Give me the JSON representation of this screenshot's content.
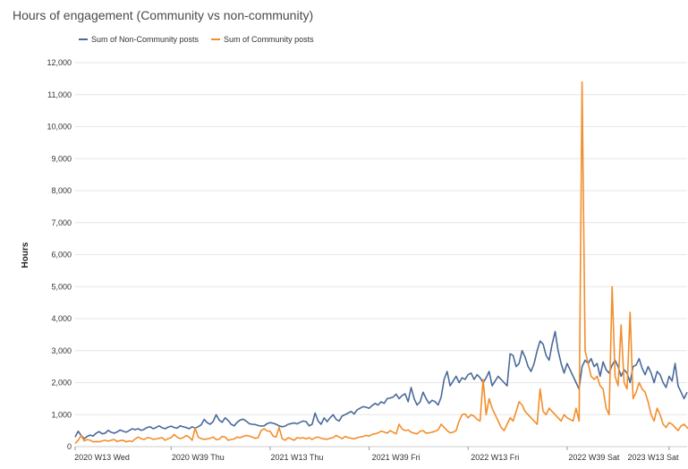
{
  "chart_data": {
    "type": "line",
    "title": "Hours of engagement (Community vs non-community)",
    "xlabel": "",
    "ylabel": "Hours",
    "ylim": [
      0,
      12000
    ],
    "yticks": [
      "0",
      "1,000",
      "2,000",
      "3,000",
      "4,000",
      "5,000",
      "6,000",
      "7,000",
      "8,000",
      "9,000",
      "10,000",
      "11,000",
      "12,000"
    ],
    "xticks": [
      "2020 W13 Wed",
      "2020 W39 Thu",
      "2021 W13 Thu",
      "2021 W39 Fri",
      "2022 W13 Fri",
      "2022 W39 Sat",
      "2023 W13 Sat"
    ],
    "colors": {
      "non_community": "#4a6a9b",
      "community": "#f28e2b"
    },
    "series": [
      {
        "name": "Sum of Non-Community posts",
        "values": [
          300,
          480,
          350,
          250,
          320,
          360,
          330,
          420,
          470,
          400,
          420,
          510,
          450,
          420,
          460,
          520,
          480,
          450,
          500,
          560,
          530,
          560,
          510,
          540,
          600,
          620,
          560,
          600,
          650,
          590,
          560,
          610,
          640,
          600,
          580,
          650,
          620,
          600,
          560,
          620,
          580,
          620,
          680,
          850,
          750,
          700,
          780,
          1000,
          830,
          760,
          900,
          820,
          700,
          650,
          760,
          830,
          860,
          800,
          720,
          700,
          690,
          660,
          640,
          650,
          720,
          750,
          730,
          700,
          650,
          620,
          640,
          700,
          720,
          740,
          710,
          760,
          800,
          780,
          650,
          700,
          1050,
          800,
          700,
          900,
          780,
          900,
          1000,
          850,
          800,
          960,
          1000,
          1050,
          1100,
          1020,
          1150,
          1200,
          1250,
          1230,
          1200,
          1280,
          1350,
          1300,
          1400,
          1350,
          1500,
          1520,
          1550,
          1640,
          1500,
          1600,
          1650,
          1400,
          1850,
          1500,
          1300,
          1400,
          1700,
          1500,
          1350,
          1450,
          1400,
          1300,
          1550,
          2100,
          2350,
          1900,
          2050,
          2200,
          2000,
          2150,
          2100,
          2250,
          2300,
          2100,
          2250,
          2150,
          2000,
          2150,
          2350,
          1900,
          2050,
          2200,
          2100,
          2000,
          1900,
          2900,
          2850,
          2500,
          2600,
          3000,
          2800,
          2500,
          2350,
          2600,
          3000,
          3300,
          3200,
          2850,
          2700,
          3200,
          3600,
          3000,
          2600,
          2300,
          2600,
          2400,
          2200,
          2000,
          1800,
          2500,
          2700,
          2600,
          2750,
          2500,
          2600,
          2200,
          2650,
          2400,
          2300,
          2550,
          2700,
          2500,
          2200,
          2400,
          2300,
          2000,
          2500,
          2550,
          2750,
          2450,
          2250,
          2500,
          2300,
          2000,
          2350,
          2250,
          2000,
          1850,
          2200,
          2050,
          2600,
          1900,
          1700,
          1500,
          1700
        ]
      },
      {
        "name": "Sum of Community posts",
        "values": [
          100,
          200,
          350,
          180,
          220,
          200,
          150,
          160,
          150,
          180,
          200,
          170,
          200,
          220,
          160,
          190,
          200,
          150,
          180,
          160,
          240,
          300,
          250,
          220,
          280,
          270,
          230,
          240,
          260,
          280,
          200,
          250,
          280,
          380,
          300,
          250,
          280,
          350,
          300,
          200,
          580,
          300,
          250,
          230,
          240,
          260,
          300,
          220,
          230,
          320,
          300,
          200,
          220,
          240,
          300,
          280,
          320,
          350,
          330,
          300,
          260,
          280,
          500,
          560,
          490,
          480,
          330,
          300,
          600,
          250,
          200,
          280,
          240,
          200,
          280,
          260,
          280,
          240,
          280,
          220,
          280,
          300,
          260,
          240,
          230,
          260,
          280,
          350,
          300,
          250,
          320,
          280,
          260,
          240,
          280,
          300,
          320,
          350,
          330,
          380,
          400,
          430,
          480,
          460,
          420,
          500,
          450,
          400,
          700,
          550,
          500,
          520,
          450,
          420,
          400,
          480,
          500,
          420,
          430,
          450,
          480,
          520,
          700,
          600,
          500,
          430,
          450,
          500,
          800,
          1000,
          1020,
          900,
          1000,
          950,
          850,
          800,
          2100,
          1000,
          1500,
          1200,
          1000,
          800,
          600,
          500,
          700,
          900,
          800,
          1100,
          1400,
          1300,
          1100,
          1000,
          900,
          800,
          700,
          1800,
          1100,
          1000,
          1200,
          1100,
          1000,
          900,
          800,
          1000,
          900,
          850,
          800,
          1200,
          800,
          11400,
          3000,
          2600,
          2200,
          2100,
          2200,
          1900,
          1800,
          1200,
          1000,
          5000,
          2200,
          1900,
          3800,
          2000,
          1800,
          4200,
          1500,
          1700,
          2000,
          1800,
          1700,
          1400,
          1000,
          800,
          1200,
          1000,
          700,
          600,
          750,
          700,
          600,
          500,
          650,
          700,
          600,
          500,
          1000,
          1200,
          1100
        ]
      }
    ]
  }
}
